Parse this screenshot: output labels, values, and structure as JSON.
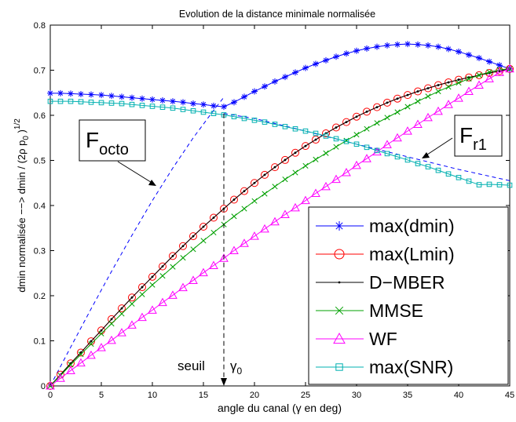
{
  "chart_data": {
    "type": "line",
    "title": "Evolution de la distance minimale normalisée",
    "xlabel": "angle du canal (γ en deg)",
    "ylabel": "dmin normalisée −−> dmin / (2ρ p",
    "ylabel_sub": "0",
    "ylabel_sup": "1/2",
    "xlim": [
      0,
      45
    ],
    "ylim": [
      0,
      0.8
    ],
    "xticks": [
      0,
      5,
      10,
      15,
      20,
      25,
      30,
      35,
      40,
      45
    ],
    "yticks": [
      0,
      0.1,
      0.2,
      0.3,
      0.4,
      0.5,
      0.6,
      0.7,
      0.8
    ],
    "grid": false,
    "legend_position": "bottom-right",
    "series": [
      {
        "name": "max(dmin)",
        "color": "#0000ff",
        "marker": "asterisk",
        "line": "solid",
        "values_key": "dmin"
      },
      {
        "name": "max(Lmin)",
        "color": "#ff0000",
        "marker": "circle",
        "line": "solid",
        "values_key": "lmin"
      },
      {
        "name": "D−MBER",
        "color": "#000000",
        "marker": "dot",
        "line": "solid",
        "values_key": "dmber"
      },
      {
        "name": "MMSE",
        "color": "#00a000",
        "marker": "x",
        "line": "solid",
        "values_key": "mmse"
      },
      {
        "name": "WF",
        "color": "#ff00ff",
        "marker": "triangle",
        "line": "solid",
        "values_key": "wf"
      },
      {
        "name": "max(SNR)",
        "color": "#00b0b0",
        "marker": "square",
        "line": "solid",
        "values_key": "snr"
      }
    ],
    "x": [
      0,
      1,
      2,
      3,
      4,
      5,
      6,
      7,
      8,
      9,
      10,
      11,
      12,
      13,
      14,
      15,
      16,
      17,
      18,
      19,
      20,
      21,
      22,
      23,
      24,
      25,
      26,
      27,
      28,
      29,
      30,
      31,
      32,
      33,
      34,
      35,
      36,
      37,
      38,
      39,
      40,
      41,
      42,
      43,
      44,
      45
    ],
    "values": {
      "dmin": [
        0.649,
        0.649,
        0.648,
        0.647,
        0.646,
        0.645,
        0.643,
        0.641,
        0.639,
        0.637,
        0.635,
        0.633,
        0.631,
        0.629,
        0.626,
        0.624,
        0.621,
        0.619,
        0.629,
        0.641,
        0.653,
        0.664,
        0.675,
        0.685,
        0.695,
        0.705,
        0.714,
        0.722,
        0.73,
        0.737,
        0.743,
        0.748,
        0.752,
        0.755,
        0.757,
        0.758,
        0.757,
        0.755,
        0.752,
        0.747,
        0.741,
        0.734,
        0.727,
        0.719,
        0.711,
        0.703
      ],
      "lmin": [
        0.0,
        0.025,
        0.05,
        0.074,
        0.099,
        0.123,
        0.148,
        0.172,
        0.196,
        0.219,
        0.242,
        0.265,
        0.288,
        0.31,
        0.332,
        0.353,
        0.373,
        0.393,
        0.413,
        0.432,
        0.45,
        0.468,
        0.485,
        0.501,
        0.517,
        0.532,
        0.546,
        0.56,
        0.573,
        0.585,
        0.597,
        0.608,
        0.618,
        0.628,
        0.637,
        0.645,
        0.653,
        0.66,
        0.667,
        0.673,
        0.679,
        0.684,
        0.689,
        0.694,
        0.698,
        0.703
      ],
      "dmber": [
        0.0,
        0.025,
        0.05,
        0.074,
        0.099,
        0.123,
        0.148,
        0.172,
        0.196,
        0.219,
        0.242,
        0.265,
        0.288,
        0.31,
        0.332,
        0.353,
        0.373,
        0.393,
        0.413,
        0.432,
        0.45,
        0.468,
        0.485,
        0.501,
        0.517,
        0.532,
        0.546,
        0.56,
        0.573,
        0.585,
        0.597,
        0.608,
        0.618,
        0.628,
        0.637,
        0.645,
        0.653,
        0.66,
        0.667,
        0.673,
        0.679,
        0.684,
        0.689,
        0.694,
        0.698,
        0.703
      ],
      "mmse": [
        0.0,
        0.023,
        0.047,
        0.07,
        0.093,
        0.116,
        0.138,
        0.16,
        0.182,
        0.203,
        0.224,
        0.244,
        0.264,
        0.284,
        0.303,
        0.322,
        0.34,
        0.358,
        0.376,
        0.393,
        0.41,
        0.426,
        0.442,
        0.458,
        0.473,
        0.488,
        0.502,
        0.516,
        0.53,
        0.544,
        0.557,
        0.57,
        0.583,
        0.595,
        0.607,
        0.619,
        0.631,
        0.642,
        0.653,
        0.663,
        0.672,
        0.681,
        0.689,
        0.696,
        0.701,
        0.703
      ],
      "wf": [
        0.0,
        0.017,
        0.034,
        0.051,
        0.068,
        0.085,
        0.101,
        0.118,
        0.135,
        0.152,
        0.168,
        0.185,
        0.201,
        0.218,
        0.234,
        0.251,
        0.267,
        0.283,
        0.3,
        0.316,
        0.332,
        0.348,
        0.364,
        0.38,
        0.395,
        0.411,
        0.427,
        0.442,
        0.458,
        0.473,
        0.489,
        0.504,
        0.519,
        0.535,
        0.55,
        0.565,
        0.58,
        0.595,
        0.609,
        0.624,
        0.638,
        0.653,
        0.667,
        0.681,
        0.695,
        0.703
      ],
      "snr": [
        0.631,
        0.631,
        0.631,
        0.63,
        0.629,
        0.628,
        0.627,
        0.626,
        0.624,
        0.622,
        0.62,
        0.618,
        0.616,
        0.613,
        0.61,
        0.607,
        0.604,
        0.601,
        0.597,
        0.593,
        0.589,
        0.585,
        0.58,
        0.575,
        0.57,
        0.565,
        0.56,
        0.554,
        0.548,
        0.542,
        0.536,
        0.529,
        0.522,
        0.515,
        0.508,
        0.501,
        0.493,
        0.486,
        0.478,
        0.47,
        0.462,
        0.454,
        0.446,
        0.447,
        0.446,
        0.445
      ]
    },
    "dashed_curves": {
      "octo": {
        "x": [
          0,
          2,
          4,
          6,
          8,
          10,
          12,
          14,
          16,
          17
        ],
        "y": [
          0.0,
          0.086,
          0.171,
          0.254,
          0.334,
          0.411,
          0.483,
          0.55,
          0.611,
          0.64
        ]
      },
      "r1": {
        "x": [
          17,
          20,
          25,
          30,
          35,
          40,
          45
        ],
        "y": [
          0.604,
          0.593,
          0.565,
          0.536,
          0.508,
          0.48,
          0.455
        ]
      }
    },
    "threshold_x": 17,
    "annotations": {
      "f_octo": "F",
      "f_octo_sub": "octo",
      "f_r1": "F",
      "f_r1_sub": "r1",
      "seuil": "seuil",
      "gamma0": "γ",
      "gamma0_sub": "0"
    }
  }
}
